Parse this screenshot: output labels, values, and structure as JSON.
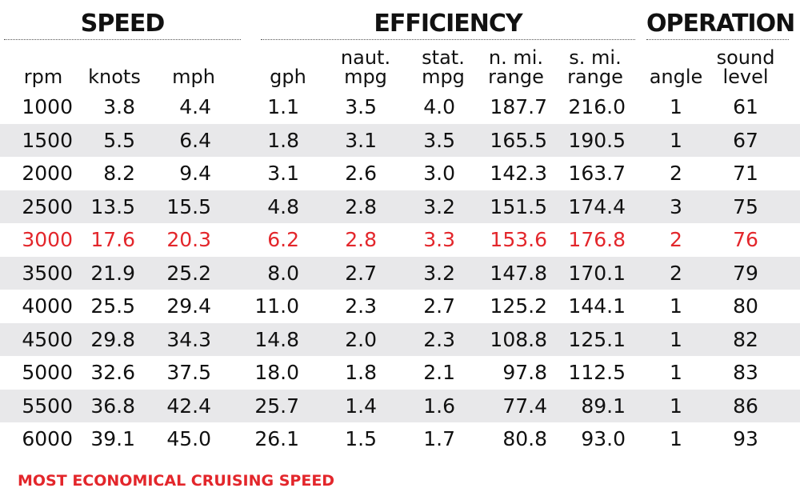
{
  "groups": {
    "speed": "SPEED",
    "efficiency": "EFFICIENCY",
    "operation": "OPERATION"
  },
  "columns": [
    {
      "key": "rpm",
      "line1": "",
      "line2": "rpm"
    },
    {
      "key": "knots",
      "line1": "",
      "line2": "knots"
    },
    {
      "key": "mph",
      "line1": "",
      "line2": "mph"
    },
    {
      "key": "gph",
      "line1": "",
      "line2": "gph"
    },
    {
      "key": "naut_mpg",
      "line1": "naut.",
      "line2": "mpg"
    },
    {
      "key": "stat_mpg",
      "line1": "stat.",
      "line2": "mpg"
    },
    {
      "key": "n_mi_range",
      "line1": "n. mi.",
      "line2": "range"
    },
    {
      "key": "s_mi_range",
      "line1": "s. mi.",
      "line2": "range"
    },
    {
      "key": "angle",
      "line1": "",
      "line2": "angle"
    },
    {
      "key": "sound_level",
      "line1": "sound",
      "line2": "level"
    }
  ],
  "highlight_color": "#e3262b",
  "footnote": "MOST ECONOMICAL CRUISING SPEED",
  "chart_data": {
    "type": "table",
    "columns": [
      "rpm",
      "knots",
      "mph",
      "gph",
      "naut. mpg",
      "stat. mpg",
      "n. mi. range",
      "s. mi. range",
      "angle",
      "sound level"
    ],
    "highlighted_row": 4,
    "rows": [
      [
        "1000",
        "3.8",
        "4.4",
        "1.1",
        "3.5",
        "4.0",
        "187.7",
        "216.0",
        "1",
        "61"
      ],
      [
        "1500",
        "5.5",
        "6.4",
        "1.8",
        "3.1",
        "3.5",
        "165.5",
        "190.5",
        "1",
        "67"
      ],
      [
        "2000",
        "8.2",
        "9.4",
        "3.1",
        "2.6",
        "3.0",
        "142.3",
        "163.7",
        "2",
        "71"
      ],
      [
        "2500",
        "13.5",
        "15.5",
        "4.8",
        "2.8",
        "3.2",
        "151.5",
        "174.4",
        "3",
        "75"
      ],
      [
        "3000",
        "17.6",
        "20.3",
        "6.2",
        "2.8",
        "3.3",
        "153.6",
        "176.8",
        "2",
        "76"
      ],
      [
        "3500",
        "21.9",
        "25.2",
        "8.0",
        "2.7",
        "3.2",
        "147.8",
        "170.1",
        "2",
        "79"
      ],
      [
        "4000",
        "25.5",
        "29.4",
        "11.0",
        "2.3",
        "2.7",
        "125.2",
        "144.1",
        "1",
        "80"
      ],
      [
        "4500",
        "29.8",
        "34.3",
        "14.8",
        "2.0",
        "2.3",
        "108.8",
        "125.1",
        "1",
        "82"
      ],
      [
        "5000",
        "32.6",
        "37.5",
        "18.0",
        "1.8",
        "2.1",
        "97.8",
        "112.5",
        "1",
        "83"
      ],
      [
        "5500",
        "36.8",
        "42.4",
        "25.7",
        "1.4",
        "1.6",
        "77.4",
        "89.1",
        "1",
        "86"
      ],
      [
        "6000",
        "39.1",
        "45.0",
        "26.1",
        "1.5",
        "1.7",
        "80.8",
        "93.0",
        "1",
        "93"
      ]
    ]
  }
}
